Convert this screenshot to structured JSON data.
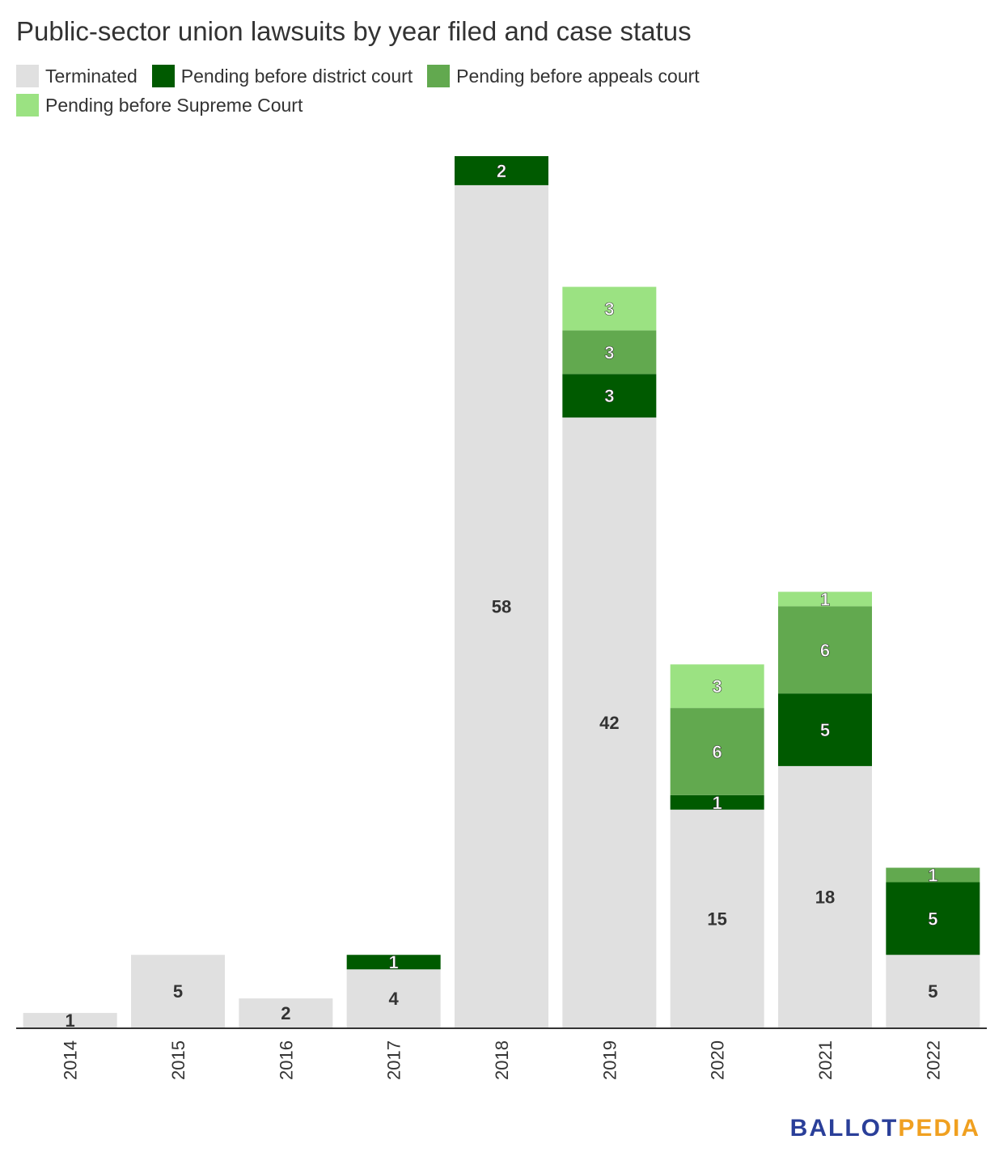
{
  "title": "Public-sector union lawsuits by year filed and case status",
  "legend": [
    {
      "label": "Terminated",
      "color": "#e0e0e0"
    },
    {
      "label": "Pending before district court",
      "color": "#005a00"
    },
    {
      "label": "Pending before appeals court",
      "color": "#62a94f"
    },
    {
      "label": "Pending before Supreme Court",
      "color": "#9be282"
    }
  ],
  "logo": {
    "part1": "BALLOT",
    "part2": "PEDIA"
  },
  "chart_data": {
    "type": "bar",
    "stacked": true,
    "title": "Public-sector union lawsuits by year filed and case status",
    "categories": [
      "2014",
      "2015",
      "2016",
      "2017",
      "2018",
      "2019",
      "2020",
      "2021",
      "2022"
    ],
    "series": [
      {
        "name": "Terminated",
        "color": "#e0e0e0",
        "values": [
          1,
          5,
          2,
          4,
          58,
          42,
          15,
          18,
          5
        ]
      },
      {
        "name": "Pending before district court",
        "color": "#005a00",
        "values": [
          0,
          0,
          0,
          1,
          2,
          3,
          1,
          5,
          5
        ]
      },
      {
        "name": "Pending before appeals court",
        "color": "#62a94f",
        "values": [
          0,
          0,
          0,
          0,
          0,
          3,
          6,
          6,
          1
        ]
      },
      {
        "name": "Pending before Supreme Court",
        "color": "#9be282",
        "values": [
          0,
          0,
          0,
          0,
          0,
          3,
          3,
          1,
          0
        ]
      }
    ],
    "ylim": [
      0,
      60
    ],
    "grid": false,
    "legend_position": "top-left",
    "xlabel": "",
    "ylabel": ""
  }
}
